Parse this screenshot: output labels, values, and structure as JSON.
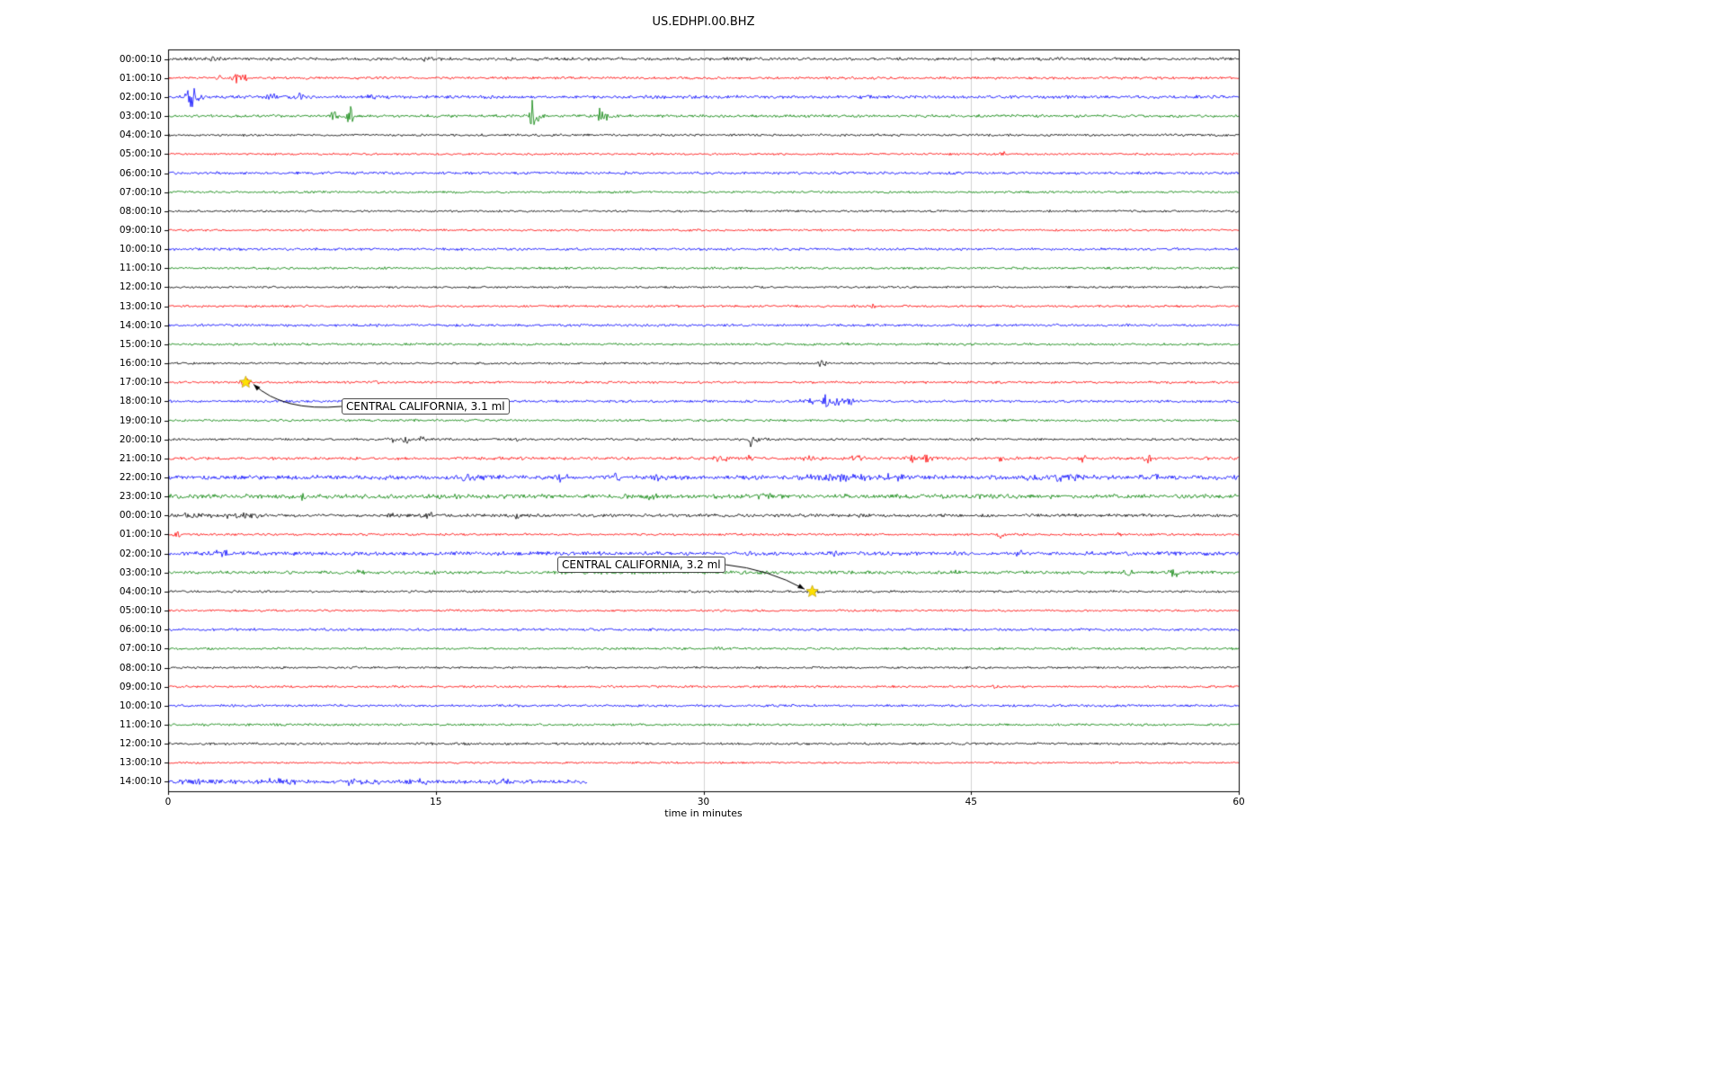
{
  "figure": {
    "title": "US.EDHPI.00.BHZ",
    "xlabel": "time in minutes"
  },
  "chart_data": {
    "type": "line",
    "subtype": "helicorder-seismogram-drum-plot",
    "title": "US.EDHPI.00.BHZ",
    "xlabel": "time in minutes",
    "ylabel": "",
    "xlim": [
      0,
      60
    ],
    "x_ticks": [
      0,
      15,
      30,
      45,
      60
    ],
    "grid": {
      "vertical_gridlines_at_minutes": [
        15,
        30,
        45
      ],
      "gridline_color": "#c8c8c8"
    },
    "color_cycle": [
      "#000000",
      "#ff0000",
      "#0000ff",
      "#008000"
    ],
    "minutes_per_row": 60,
    "row_count": 39,
    "rows": [
      {
        "label": "00:00:10",
        "noise": 1.4,
        "end": 60,
        "events": [
          {
            "x": 1.2,
            "amp": 2.2,
            "w": 0.3
          },
          {
            "x": 2.6,
            "amp": 2.0,
            "w": 0.3
          },
          {
            "x": 14.3,
            "amp": 2.0,
            "w": 0.2
          },
          {
            "x": 21.0,
            "amp": 1.8,
            "w": 0.3
          }
        ]
      },
      {
        "label": "01:00:10",
        "noise": 1.2,
        "end": 60,
        "events": [
          {
            "x": 2.9,
            "amp": 3.5,
            "w": 0.12
          },
          {
            "x": 3.9,
            "amp": 5.0,
            "w": 0.2
          },
          {
            "x": 4.3,
            "amp": 4.0,
            "w": 0.12
          },
          {
            "x": 10.8,
            "amp": 2.0,
            "w": 0.1
          }
        ]
      },
      {
        "label": "02:00:10",
        "noise": 1.5,
        "end": 60,
        "events": [
          {
            "x": 1.2,
            "amp": 13.0,
            "w": 0.18
          },
          {
            "x": 1.5,
            "amp": 6.0,
            "w": 0.3
          },
          {
            "x": 5.9,
            "amp": 5.0,
            "w": 0.25
          },
          {
            "x": 7.4,
            "amp": 4.0,
            "w": 0.2
          },
          {
            "x": 11.5,
            "amp": 2.5,
            "w": 0.2
          }
        ]
      },
      {
        "label": "03:00:10",
        "noise": 1.3,
        "end": 60,
        "events": [
          {
            "x": 9.3,
            "amp": 7.0,
            "w": 0.15
          },
          {
            "x": 10.2,
            "amp": 14.0,
            "w": 0.12
          },
          {
            "x": 20.4,
            "amp": 16.0,
            "w": 0.12
          },
          {
            "x": 20.6,
            "amp": 6.0,
            "w": 0.3
          },
          {
            "x": 24.2,
            "amp": 10.0,
            "w": 0.12
          },
          {
            "x": 24.5,
            "amp": 4.0,
            "w": 0.3
          }
        ]
      },
      {
        "label": "04:00:10",
        "noise": 1.1,
        "end": 60,
        "events": []
      },
      {
        "label": "05:00:10",
        "noise": 1.0,
        "end": 60,
        "events": [
          {
            "x": 46.8,
            "amp": 2.5,
            "w": 0.15
          }
        ]
      },
      {
        "label": "06:00:10",
        "noise": 1.3,
        "end": 60,
        "events": []
      },
      {
        "label": "07:00:10",
        "noise": 1.1,
        "end": 60,
        "events": []
      },
      {
        "label": "08:00:10",
        "noise": 1.0,
        "end": 60,
        "events": []
      },
      {
        "label": "09:00:10",
        "noise": 1.0,
        "end": 60,
        "events": []
      },
      {
        "label": "10:00:10",
        "noise": 1.2,
        "end": 60,
        "events": []
      },
      {
        "label": "11:00:10",
        "noise": 1.1,
        "end": 60,
        "events": []
      },
      {
        "label": "12:00:10",
        "noise": 1.0,
        "end": 60,
        "events": []
      },
      {
        "label": "13:00:10",
        "noise": 1.1,
        "end": 60,
        "events": [
          {
            "x": 39.5,
            "amp": 2.0,
            "w": 0.2
          }
        ]
      },
      {
        "label": "14:00:10",
        "noise": 1.2,
        "end": 60,
        "events": []
      },
      {
        "label": "15:00:10",
        "noise": 1.1,
        "end": 60,
        "events": [
          {
            "x": 38.0,
            "amp": 1.8,
            "w": 0.25
          }
        ]
      },
      {
        "label": "16:00:10",
        "noise": 1.0,
        "end": 60,
        "events": [
          {
            "x": 36.6,
            "amp": 5.0,
            "w": 0.18
          }
        ]
      },
      {
        "label": "17:00:10",
        "noise": 1.1,
        "end": 60,
        "events": [
          {
            "x": 4.35,
            "amp": 6.0,
            "w": 0.2
          },
          {
            "x": 11.7,
            "amp": 2.2,
            "w": 0.12
          }
        ]
      },
      {
        "label": "18:00:10",
        "noise": 1.2,
        "end": 60,
        "events": [
          {
            "x": 35.9,
            "amp": 4.0,
            "w": 0.3
          },
          {
            "x": 36.9,
            "amp": 14.0,
            "w": 0.1
          },
          {
            "x": 37.3,
            "amp": 5.0,
            "w": 0.4
          },
          {
            "x": 38.2,
            "amp": 4.0,
            "w": 0.3
          }
        ]
      },
      {
        "label": "19:00:10",
        "noise": 1.1,
        "end": 60,
        "events": []
      },
      {
        "label": "20:00:10",
        "noise": 1.1,
        "end": 60,
        "events": [
          {
            "x": 12.6,
            "amp": 4.5,
            "w": 0.15
          },
          {
            "x": 13.3,
            "amp": 5.5,
            "w": 0.15
          },
          {
            "x": 14.1,
            "amp": 4.5,
            "w": 0.2
          },
          {
            "x": 19.6,
            "amp": 3.0,
            "w": 0.12
          },
          {
            "x": 32.7,
            "amp": 7.0,
            "w": 0.15
          },
          {
            "x": 33.0,
            "amp": 3.0,
            "w": 0.3
          }
        ]
      },
      {
        "label": "21:00:10",
        "noise": 1.4,
        "end": 60,
        "events": [
          {
            "x": 31.0,
            "amp": 3.5,
            "w": 0.3
          },
          {
            "x": 32.6,
            "amp": 3.5,
            "w": 0.2
          },
          {
            "x": 36.0,
            "amp": 3.0,
            "w": 0.3
          },
          {
            "x": 38.6,
            "amp": 3.5,
            "w": 0.25
          },
          {
            "x": 41.6,
            "amp": 4.5,
            "w": 0.2
          },
          {
            "x": 42.6,
            "amp": 6.5,
            "w": 0.18
          },
          {
            "x": 46.6,
            "amp": 4.0,
            "w": 0.2
          },
          {
            "x": 51.2,
            "amp": 4.0,
            "w": 0.2
          },
          {
            "x": 54.9,
            "amp": 5.0,
            "w": 0.18
          }
        ]
      },
      {
        "label": "22:00:10",
        "noise": 2.0,
        "end": 60,
        "events": [
          {
            "x": 17.0,
            "amp": 3.5,
            "w": 0.6
          },
          {
            "x": 22.0,
            "amp": 3.0,
            "w": 0.3
          },
          {
            "x": 25.0,
            "amp": 3.5,
            "w": 0.3
          },
          {
            "x": 27.5,
            "amp": 3.0,
            "w": 0.3
          },
          {
            "x": 37.5,
            "amp": 4.0,
            "w": 1.2
          },
          {
            "x": 40.5,
            "amp": 3.5,
            "w": 0.8
          },
          {
            "x": 50.0,
            "amp": 3.5,
            "w": 1.5
          },
          {
            "x": 55.0,
            "amp": 3.0,
            "w": 0.5
          }
        ]
      },
      {
        "label": "23:00:10",
        "noise": 2.0,
        "end": 60,
        "events": [
          {
            "x": 4.4,
            "amp": 5.0,
            "w": 0.15
          },
          {
            "x": 7.5,
            "amp": 3.5,
            "w": 0.2
          },
          {
            "x": 16.2,
            "amp": 3.0,
            "w": 0.3
          },
          {
            "x": 27.0,
            "amp": 3.0,
            "w": 0.4
          },
          {
            "x": 33.5,
            "amp": 3.5,
            "w": 0.3
          },
          {
            "x": 44.0,
            "amp": 2.5,
            "w": 0.3
          }
        ]
      },
      {
        "label": "00:00:10",
        "noise": 1.5,
        "end": 60,
        "events": [
          {
            "x": 1.5,
            "amp": 2.5,
            "w": 1.2
          },
          {
            "x": 4.0,
            "amp": 2.5,
            "w": 1.0
          },
          {
            "x": 12.5,
            "amp": 2.0,
            "w": 0.3
          },
          {
            "x": 14.6,
            "amp": 8.0,
            "w": 0.1
          },
          {
            "x": 19.6,
            "amp": 7.0,
            "w": 0.1
          }
        ]
      },
      {
        "label": "01:00:10",
        "noise": 1.1,
        "end": 60,
        "events": [
          {
            "x": 0.5,
            "amp": 4.5,
            "w": 0.15
          },
          {
            "x": 46.7,
            "amp": 3.5,
            "w": 0.15
          },
          {
            "x": 53.2,
            "amp": 2.5,
            "w": 0.15
          }
        ]
      },
      {
        "label": "02:00:10",
        "noise": 1.8,
        "end": 60,
        "events": [
          {
            "x": 3.0,
            "amp": 2.5,
            "w": 0.5
          },
          {
            "x": 37.3,
            "amp": 4.5,
            "w": 0.25
          },
          {
            "x": 39.6,
            "amp": 3.5,
            "w": 0.2
          },
          {
            "x": 44.2,
            "amp": 2.5,
            "w": 0.2
          },
          {
            "x": 47.9,
            "amp": 3.5,
            "w": 0.3
          }
        ]
      },
      {
        "label": "03:00:10",
        "noise": 1.5,
        "end": 60,
        "events": [
          {
            "x": 10.7,
            "amp": 3.5,
            "w": 0.2
          },
          {
            "x": 14.9,
            "amp": 2.5,
            "w": 0.2
          },
          {
            "x": 24.5,
            "amp": 2.5,
            "w": 0.2
          },
          {
            "x": 44.3,
            "amp": 2.5,
            "w": 0.25
          },
          {
            "x": 53.9,
            "amp": 3.5,
            "w": 0.2
          },
          {
            "x": 56.4,
            "amp": 3.5,
            "w": 0.25
          }
        ]
      },
      {
        "label": "04:00:10",
        "noise": 1.1,
        "end": 60,
        "events": [
          {
            "x": 36.1,
            "amp": 2.0,
            "w": 0.3
          }
        ]
      },
      {
        "label": "05:00:10",
        "noise": 1.0,
        "end": 60,
        "events": []
      },
      {
        "label": "06:00:10",
        "noise": 1.2,
        "end": 60,
        "events": []
      },
      {
        "label": "07:00:10",
        "noise": 1.1,
        "end": 60,
        "events": [
          {
            "x": 30.9,
            "amp": 2.5,
            "w": 0.15
          }
        ]
      },
      {
        "label": "08:00:10",
        "noise": 1.0,
        "end": 60,
        "events": []
      },
      {
        "label": "09:00:10",
        "noise": 1.1,
        "end": 60,
        "events": [
          {
            "x": 46.2,
            "amp": 2.0,
            "w": 0.2
          }
        ]
      },
      {
        "label": "10:00:10",
        "noise": 1.2,
        "end": 60,
        "events": []
      },
      {
        "label": "11:00:10",
        "noise": 1.1,
        "end": 60,
        "events": []
      },
      {
        "label": "12:00:10",
        "noise": 1.1,
        "end": 60,
        "events": []
      },
      {
        "label": "13:00:10",
        "noise": 0.9,
        "end": 60,
        "events": []
      },
      {
        "label": "14:00:10",
        "noise": 1.8,
        "end": 23.5,
        "events": [
          {
            "x": 2.0,
            "amp": 2.5,
            "w": 1.0
          },
          {
            "x": 6.0,
            "amp": 2.5,
            "w": 1.0
          },
          {
            "x": 10.5,
            "amp": 2.5,
            "w": 0.8
          },
          {
            "x": 14.0,
            "amp": 2.5,
            "w": 0.8
          },
          {
            "x": 18.5,
            "amp": 2.5,
            "w": 0.8
          }
        ]
      }
    ],
    "annotations": [
      {
        "text": "CENTRAL CALIFORNIA, 3.1 ml",
        "row_index": 17,
        "x_min": 4.35,
        "marker": "star",
        "marker_color": "#ffe100"
      },
      {
        "text": "CENTRAL CALIFORNIA, 3.2 ml",
        "row_index": 28,
        "x_min": 36.1,
        "marker": "star",
        "marker_color": "#ffe100"
      }
    ]
  }
}
